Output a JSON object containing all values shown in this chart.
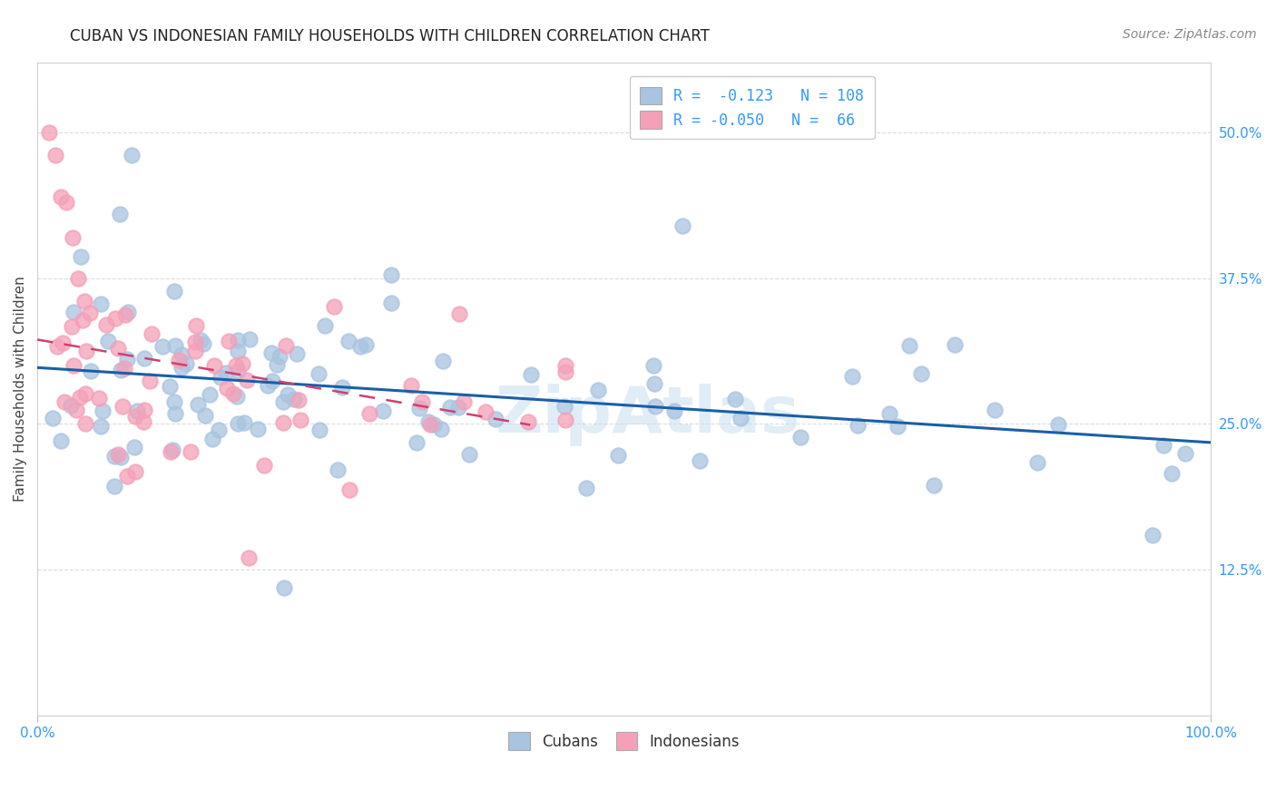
{
  "title": "CUBAN VS INDONESIAN FAMILY HOUSEHOLDS WITH CHILDREN CORRELATION CHART",
  "source": "Source: ZipAtlas.com",
  "ylabel": "Family Households with Children",
  "ytick_labels": [
    "12.5%",
    "25.0%",
    "37.5%",
    "50.0%"
  ],
  "ytick_values": [
    0.125,
    0.25,
    0.375,
    0.5
  ],
  "xlim": [
    0.0,
    1.0
  ],
  "ylim": [
    0.0,
    0.56
  ],
  "legend_cuban_r": "-0.123",
  "legend_cuban_n": "108",
  "legend_indonesian_r": "-0.050",
  "legend_indonesian_n": "66",
  "cuban_color": "#a8c4e0",
  "indonesian_color": "#f4a0b8",
  "cuban_line_color": "#1a5fa8",
  "indonesian_line_color": "#d04070",
  "background_color": "#ffffff",
  "grid_color": "#d8d8d8",
  "watermark_text": "ZipAtlas",
  "title_fontsize": 12,
  "axis_label_fontsize": 11,
  "tick_fontsize": 11,
  "source_fontsize": 10,
  "legend_fontsize": 12
}
